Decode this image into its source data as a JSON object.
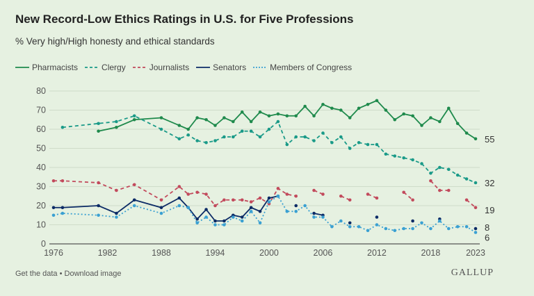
{
  "header": {
    "title": "New Record-Low Ethics Ratings in U.S. for Five Professions",
    "subtitle": "% Very high/High honesty and ethical standards"
  },
  "footer": {
    "get_data": "Get the data",
    "separator": " • ",
    "download": "Download image",
    "logo": "GALLUP"
  },
  "chart_data": {
    "type": "line",
    "title": "New Record-Low Ethics Ratings in U.S. for Five Professions",
    "subtitle": "% Very high/High honesty and ethical standards",
    "xlim": [
      1976,
      2023
    ],
    "ylim": [
      0,
      80
    ],
    "x_ticks": [
      "1976",
      "1982",
      "1988",
      "1994",
      "2000",
      "2006",
      "2012",
      "2018",
      "2023"
    ],
    "y_ticks": [
      "0",
      "10",
      "20",
      "30",
      "40",
      "50",
      "60",
      "70",
      "80"
    ],
    "grid": "horizontal",
    "legend": "top-left",
    "series": [
      {
        "name": "Pharmacists",
        "color": "#1f8a4c",
        "style": "solid",
        "end_label": "55",
        "points": [
          [
            1981,
            59
          ],
          [
            1983,
            61
          ],
          [
            1985,
            65
          ],
          [
            1988,
            66
          ],
          [
            1990,
            62
          ],
          [
            1991,
            60
          ],
          [
            1992,
            66
          ],
          [
            1993,
            65
          ],
          [
            1994,
            62
          ],
          [
            1995,
            66
          ],
          [
            1996,
            64
          ],
          [
            1997,
            69
          ],
          [
            1998,
            64
          ],
          [
            1999,
            69
          ],
          [
            2000,
            67
          ],
          [
            2001,
            68
          ],
          [
            2002,
            67
          ],
          [
            2003,
            67
          ],
          [
            2004,
            72
          ],
          [
            2005,
            67
          ],
          [
            2006,
            73
          ],
          [
            2007,
            71
          ],
          [
            2008,
            70
          ],
          [
            2009,
            66
          ],
          [
            2010,
            71
          ],
          [
            2011,
            73
          ],
          [
            2012,
            75
          ],
          [
            2013,
            70
          ],
          [
            2014,
            65
          ],
          [
            2015,
            68
          ],
          [
            2016,
            67
          ],
          [
            2017,
            62
          ],
          [
            2018,
            66
          ],
          [
            2019,
            64
          ],
          [
            2020,
            71
          ],
          [
            2021,
            63
          ],
          [
            2022,
            58
          ],
          [
            2023,
            55
          ]
        ]
      },
      {
        "name": "Clergy",
        "color": "#1a9a88",
        "style": "dashed",
        "end_label": "32",
        "points": [
          [
            1977,
            61
          ],
          [
            1981,
            63
          ],
          [
            1983,
            64
          ],
          [
            1985,
            67
          ],
          [
            1988,
            60
          ],
          [
            1990,
            55
          ],
          [
            1991,
            57
          ],
          [
            1992,
            54
          ],
          [
            1993,
            53
          ],
          [
            1994,
            54
          ],
          [
            1995,
            56
          ],
          [
            1996,
            56
          ],
          [
            1997,
            59
          ],
          [
            1998,
            59
          ],
          [
            1999,
            56
          ],
          [
            2000,
            60
          ],
          [
            2001,
            64
          ],
          [
            2002,
            52
          ],
          [
            2003,
            56
          ],
          [
            2004,
            56
          ],
          [
            2005,
            54
          ],
          [
            2006,
            58
          ],
          [
            2007,
            53
          ],
          [
            2008,
            56
          ],
          [
            2009,
            50
          ],
          [
            2010,
            53
          ],
          [
            2011,
            52
          ],
          [
            2012,
            52
          ],
          [
            2013,
            47
          ],
          [
            2014,
            46
          ],
          [
            2015,
            45
          ],
          [
            2016,
            44
          ],
          [
            2017,
            42
          ],
          [
            2018,
            37
          ],
          [
            2019,
            40
          ],
          [
            2020,
            39
          ],
          [
            2021,
            36
          ],
          [
            2022,
            34
          ],
          [
            2023,
            32
          ]
        ]
      },
      {
        "name": "Journalists",
        "color": "#c24a5c",
        "style": "dashed",
        "end_label": "19",
        "points": [
          [
            1976,
            33
          ],
          [
            1977,
            33
          ],
          [
            1981,
            32
          ],
          [
            1983,
            28
          ],
          [
            1985,
            31
          ],
          [
            1988,
            23
          ],
          [
            1990,
            30
          ],
          [
            1991,
            26
          ],
          [
            1992,
            27
          ],
          [
            1993,
            26
          ],
          [
            1994,
            20
          ],
          [
            1995,
            23
          ],
          [
            1996,
            23
          ],
          [
            1997,
            23
          ],
          [
            1998,
            22
          ],
          [
            1999,
            24
          ],
          [
            2000,
            21
          ],
          [
            2001,
            29
          ],
          [
            2002,
            26
          ],
          [
            2003,
            25
          ],
          null,
          [
            2005,
            28
          ],
          [
            2006,
            26
          ],
          null,
          [
            2008,
            25
          ],
          [
            2009,
            23
          ],
          null,
          [
            2011,
            26
          ],
          [
            2012,
            24
          ],
          null,
          [
            2015,
            27
          ],
          [
            2016,
            23
          ],
          null,
          [
            2018,
            33
          ],
          [
            2019,
            28
          ],
          [
            2020,
            28
          ],
          null,
          [
            2022,
            23
          ],
          [
            2023,
            19
          ]
        ]
      },
      {
        "name": "Senators",
        "color": "#0c2b66",
        "style": "solid",
        "end_label": "8",
        "points": [
          [
            1976,
            19
          ],
          [
            1977,
            19
          ],
          [
            1981,
            20
          ],
          [
            1983,
            16
          ],
          [
            1985,
            23
          ],
          [
            1988,
            19
          ],
          [
            1990,
            24
          ],
          [
            1991,
            19
          ],
          [
            1992,
            13
          ],
          [
            1993,
            18
          ],
          [
            1994,
            12
          ],
          [
            1995,
            12
          ],
          [
            1996,
            15
          ],
          [
            1997,
            14
          ],
          [
            1998,
            19
          ],
          [
            1999,
            17
          ],
          [
            2000,
            24
          ],
          [
            2001,
            25
          ],
          null,
          [
            2003,
            20
          ],
          null,
          [
            2005,
            16
          ],
          [
            2006,
            15
          ],
          null,
          [
            2009,
            11
          ],
          null,
          [
            2012,
            14
          ],
          null,
          [
            2016,
            12
          ],
          null,
          [
            2019,
            13
          ],
          null,
          [
            2023,
            8
          ]
        ]
      },
      {
        "name": "Members of Congress",
        "color": "#3aa0d2",
        "style": "dotted",
        "end_label": "6",
        "points": [
          [
            1976,
            15
          ],
          [
            1977,
            16
          ],
          [
            1981,
            15
          ],
          [
            1983,
            14
          ],
          [
            1985,
            20
          ],
          [
            1988,
            16
          ],
          [
            1990,
            20
          ],
          [
            1991,
            19
          ],
          [
            1992,
            11
          ],
          [
            1993,
            14
          ],
          [
            1994,
            10
          ],
          [
            1995,
            10
          ],
          [
            1996,
            14
          ],
          [
            1997,
            12
          ],
          [
            1998,
            17
          ],
          [
            1999,
            11
          ],
          [
            2000,
            22
          ],
          [
            2001,
            25
          ],
          [
            2002,
            17
          ],
          [
            2003,
            17
          ],
          [
            2004,
            20
          ],
          [
            2005,
            14
          ],
          [
            2006,
            14
          ],
          [
            2007,
            9
          ],
          [
            2008,
            12
          ],
          [
            2009,
            9
          ],
          [
            2010,
            9
          ],
          [
            2011,
            7
          ],
          [
            2012,
            10
          ],
          [
            2013,
            8
          ],
          [
            2014,
            7
          ],
          [
            2015,
            8
          ],
          [
            2016,
            8
          ],
          [
            2017,
            11
          ],
          [
            2018,
            8
          ],
          [
            2019,
            12
          ],
          [
            2020,
            8
          ],
          [
            2021,
            9
          ],
          [
            2022,
            9
          ],
          [
            2023,
            6
          ]
        ]
      }
    ]
  }
}
